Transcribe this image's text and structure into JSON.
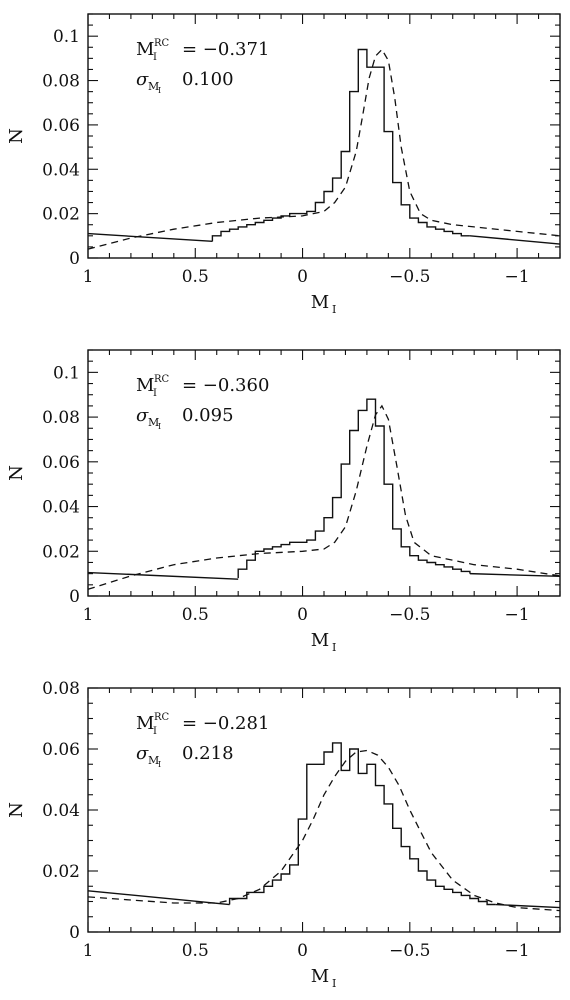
{
  "chart_data": [
    {
      "type": "line",
      "panel": "top",
      "xlabel": "M",
      "xlabel_sub": "I",
      "ylabel": "N",
      "xlim": [
        1,
        -1.2
      ],
      "ylim": [
        0,
        0.11
      ],
      "xticks": [
        1,
        0.5,
        0,
        -0.5,
        -1
      ],
      "xtick_labels": [
        "1",
        "0.5",
        "0",
        "−0.5",
        "−1"
      ],
      "yticks": [
        0,
        0.02,
        0.04,
        0.06,
        0.08,
        0.1
      ],
      "ytick_labels": [
        "0",
        "0.02",
        "0.04",
        "0.06",
        "0.08",
        "0.1"
      ],
      "annotation": {
        "line1_sym": "M",
        "line1_sup": "RC",
        "line1_sub": "I",
        "line1_val": "= −0.371",
        "line2_sym": "σ",
        "line2_sub": "M",
        "line2_subsub": "I",
        "line2_val": "0.100"
      },
      "series": [
        {
          "style": "histogram",
          "edges": [
            1.0,
            0.42,
            0.38,
            0.34,
            0.3,
            0.26,
            0.22,
            0.18,
            0.14,
            0.1,
            0.06,
            0.02,
            -0.02,
            -0.06,
            -0.1,
            -0.14,
            -0.18,
            -0.22,
            -0.26,
            -0.3,
            -0.34,
            -0.38,
            -0.42,
            -0.46,
            -0.5,
            -0.54,
            -0.58,
            -0.62,
            -0.66,
            -0.7,
            -0.74,
            -0.78,
            -1.2
          ],
          "values": [
            0.0075,
            0.01,
            0.012,
            0.013,
            0.014,
            0.015,
            0.016,
            0.017,
            0.018,
            0.019,
            0.02,
            0.02,
            0.021,
            0.025,
            0.03,
            0.036,
            0.048,
            0.075,
            0.094,
            0.086,
            0.086,
            0.057,
            0.034,
            0.024,
            0.018,
            0.016,
            0.014,
            0.013,
            0.012,
            0.011,
            0.01,
            0.009
          ],
          "left_tail": {
            "x": [
              1.0,
              0.42
            ],
            "y": [
              0.011,
              0.0075
            ]
          },
          "right_tail": {
            "x": [
              -0.78,
              -1.2
            ],
            "y": [
              0.01,
              0.0063
            ]
          }
        },
        {
          "style": "dashed",
          "x": [
            1.0,
            0.8,
            0.6,
            0.4,
            0.2,
            0.1,
            0.0,
            -0.1,
            -0.15,
            -0.2,
            -0.25,
            -0.28,
            -0.31,
            -0.34,
            -0.37,
            -0.4,
            -0.43,
            -0.46,
            -0.5,
            -0.55,
            -0.6,
            -0.7,
            -0.8,
            -1.0,
            -1.2
          ],
          "y": [
            0.004,
            0.009,
            0.013,
            0.016,
            0.018,
            0.0185,
            0.019,
            0.021,
            0.025,
            0.032,
            0.048,
            0.064,
            0.081,
            0.091,
            0.094,
            0.089,
            0.072,
            0.05,
            0.03,
            0.02,
            0.017,
            0.015,
            0.014,
            0.012,
            0.01
          ]
        }
      ]
    },
    {
      "type": "line",
      "panel": "middle",
      "xlabel": "M",
      "xlabel_sub": "I",
      "ylabel": "N",
      "xlim": [
        1,
        -1.2
      ],
      "ylim": [
        0,
        0.11
      ],
      "xticks": [
        1,
        0.5,
        0,
        -0.5,
        -1
      ],
      "xtick_labels": [
        "1",
        "0.5",
        "0",
        "−0.5",
        "−1"
      ],
      "yticks": [
        0,
        0.02,
        0.04,
        0.06,
        0.08,
        0.1
      ],
      "ytick_labels": [
        "0",
        "0.02",
        "0.04",
        "0.06",
        "0.08",
        "0.1"
      ],
      "annotation": {
        "line1_sym": "M",
        "line1_sup": "RC",
        "line1_sub": "I",
        "line1_val": "= −0.360",
        "line2_sym": "σ",
        "line2_sub": "M",
        "line2_subsub": "I",
        "line2_val": "0.095"
      },
      "series": [
        {
          "style": "histogram",
          "edges": [
            1.0,
            0.3,
            0.26,
            0.22,
            0.18,
            0.14,
            0.1,
            0.06,
            0.02,
            -0.02,
            -0.06,
            -0.1,
            -0.14,
            -0.18,
            -0.22,
            -0.26,
            -0.3,
            -0.34,
            -0.38,
            -0.42,
            -0.46,
            -0.5,
            -0.54,
            -0.58,
            -0.62,
            -0.66,
            -0.7,
            -0.74,
            -0.78,
            -1.2
          ],
          "values": [
            0.008,
            0.012,
            0.016,
            0.02,
            0.021,
            0.022,
            0.023,
            0.024,
            0.024,
            0.025,
            0.029,
            0.035,
            0.044,
            0.059,
            0.074,
            0.083,
            0.088,
            0.076,
            0.05,
            0.03,
            0.022,
            0.018,
            0.016,
            0.015,
            0.014,
            0.013,
            0.012,
            0.011,
            0.01
          ],
          "left_tail": {
            "x": [
              1.0,
              0.3
            ],
            "y": [
              0.0105,
              0.0075
            ]
          },
          "right_tail": {
            "x": [
              -0.78,
              -1.2
            ],
            "y": [
              0.01,
              0.0088
            ]
          }
        },
        {
          "style": "dashed",
          "x": [
            1.0,
            0.8,
            0.6,
            0.4,
            0.2,
            0.0,
            -0.1,
            -0.15,
            -0.2,
            -0.25,
            -0.3,
            -0.34,
            -0.37,
            -0.4,
            -0.44,
            -0.48,
            -0.52,
            -0.6,
            -0.7,
            -0.8,
            -1.0,
            -1.2
          ],
          "y": [
            0.003,
            0.009,
            0.014,
            0.017,
            0.019,
            0.02,
            0.021,
            0.024,
            0.031,
            0.047,
            0.067,
            0.081,
            0.085,
            0.079,
            0.058,
            0.036,
            0.024,
            0.018,
            0.016,
            0.014,
            0.012,
            0.009
          ]
        }
      ]
    },
    {
      "type": "line",
      "panel": "bottom",
      "xlabel": "M",
      "xlabel_sub": "I",
      "ylabel": "N",
      "xlim": [
        1,
        -1.2
      ],
      "ylim": [
        0,
        0.08
      ],
      "xticks": [
        1,
        0.5,
        0,
        -0.5,
        -1
      ],
      "xtick_labels": [
        "1",
        "0.5",
        "0",
        "−0.5",
        "−1"
      ],
      "yticks": [
        0,
        0.02,
        0.04,
        0.06,
        0.08
      ],
      "ytick_labels": [
        "0",
        "0.02",
        "0.04",
        "0.06",
        "0.08"
      ],
      "annotation": {
        "line1_sym": "M",
        "line1_sup": "RC",
        "line1_sub": "I",
        "line1_val": "= −0.281",
        "line2_sym": "σ",
        "line2_sub": "M",
        "line2_subsub": "I",
        "line2_val": "0.218"
      },
      "series": [
        {
          "style": "histogram",
          "edges": [
            1.0,
            0.34,
            0.26,
            0.18,
            0.14,
            0.1,
            0.06,
            0.02,
            -0.02,
            -0.06,
            -0.1,
            -0.14,
            -0.18,
            -0.22,
            -0.26,
            -0.3,
            -0.34,
            -0.38,
            -0.42,
            -0.46,
            -0.5,
            -0.54,
            -0.58,
            -0.62,
            -0.66,
            -0.7,
            -0.74,
            -0.78,
            -0.82,
            -0.86,
            -0.9,
            -1.2
          ],
          "values": [
            0.009,
            0.011,
            0.013,
            0.015,
            0.017,
            0.019,
            0.022,
            0.037,
            0.055,
            0.055,
            0.059,
            0.062,
            0.053,
            0.06,
            0.052,
            0.055,
            0.048,
            0.042,
            0.034,
            0.028,
            0.024,
            0.02,
            0.017,
            0.015,
            0.014,
            0.013,
            0.012,
            0.011,
            0.01,
            0.009,
            0.008
          ],
          "left_tail": {
            "x": [
              1.0,
              0.34
            ],
            "y": [
              0.0135,
              0.009
            ]
          },
          "right_tail": {
            "x": [
              -0.9,
              -1.2
            ],
            "y": [
              0.009,
              0.008
            ]
          }
        },
        {
          "style": "dashed",
          "x": [
            1.0,
            0.8,
            0.6,
            0.4,
            0.3,
            0.2,
            0.1,
            0.0,
            -0.05,
            -0.1,
            -0.15,
            -0.2,
            -0.25,
            -0.3,
            -0.35,
            -0.4,
            -0.45,
            -0.5,
            -0.55,
            -0.6,
            -0.7,
            -0.8,
            -0.9,
            -1.0,
            -1.2
          ],
          "y": [
            0.0115,
            0.0105,
            0.0095,
            0.0095,
            0.011,
            0.014,
            0.02,
            0.03,
            0.037,
            0.045,
            0.051,
            0.056,
            0.059,
            0.0595,
            0.058,
            0.054,
            0.048,
            0.04,
            0.033,
            0.026,
            0.017,
            0.012,
            0.0095,
            0.008,
            0.007
          ]
        }
      ]
    }
  ]
}
